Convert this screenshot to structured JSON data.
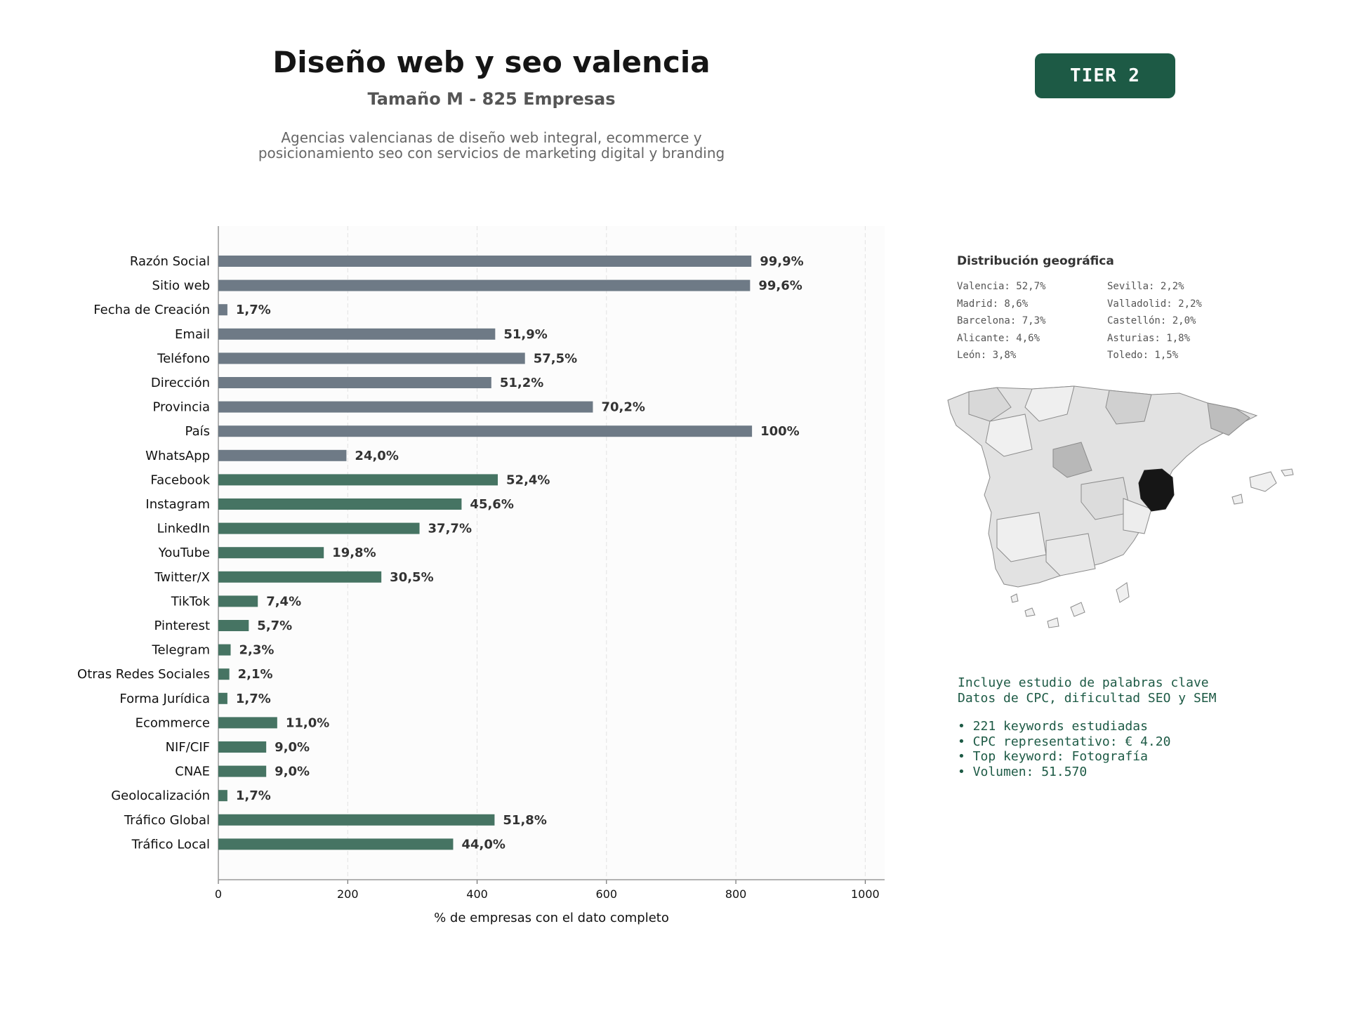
{
  "header": {
    "title": "Diseño web y seo valencia",
    "subtitle": "Tamaño M - 825 Empresas",
    "description_line1": "Agencias valencianas de diseño web integral, ecommerce y",
    "description_line2": "posicionamiento seo con servicios de marketing digital y branding",
    "tier_badge": "TIER 2"
  },
  "colors": {
    "gray_bar": "#6e7a86",
    "green_bar": "#467463",
    "accent": "#1d5a45",
    "highlight_region": "#161616"
  },
  "chart_data": {
    "type": "bar",
    "orientation": "horizontal",
    "xlabel": "% de empresas con el dato completo",
    "ylabel": "",
    "xlim": [
      0,
      1030
    ],
    "xticks": [
      0,
      200,
      400,
      600,
      800,
      1000
    ],
    "grid": "vertical dashed",
    "categories": [
      "Razón Social",
      "Sitio web",
      "Fecha de Creación",
      "Email",
      "Teléfono",
      "Dirección",
      "Provincia",
      "País",
      "WhatsApp",
      "Facebook",
      "Instagram",
      "LinkedIn",
      "YouTube",
      "Twitter/X",
      "TikTok",
      "Pinterest",
      "Telegram",
      "Otras Redes Sociales",
      "Forma Jurídica",
      "Ecommerce",
      "NIF/CIF",
      "CNAE",
      "Geolocalización",
      "Tráfico Global",
      "Tráfico Local"
    ],
    "values": [
      824,
      822,
      14,
      428,
      474,
      422,
      579,
      825,
      198,
      432,
      376,
      311,
      163,
      252,
      61,
      47,
      19,
      17,
      14,
      91,
      74,
      74,
      14,
      427,
      363
    ],
    "labels": [
      "99,9%",
      "99,6%",
      "1,7%",
      "51,9%",
      "57,5%",
      "51,2%",
      "70,2%",
      "100%",
      "24,0%",
      "52,4%",
      "45,6%",
      "37,7%",
      "19,8%",
      "30,5%",
      "7,4%",
      "5,7%",
      "2,3%",
      "2,1%",
      "1,7%",
      "11,0%",
      "9,0%",
      "9,0%",
      "1,7%",
      "51,8%",
      "44,0%"
    ],
    "bar_color_groups": [
      "gray",
      "gray",
      "gray",
      "gray",
      "gray",
      "gray",
      "gray",
      "gray",
      "gray",
      "green",
      "green",
      "green",
      "green",
      "green",
      "green",
      "green",
      "green",
      "green",
      "green",
      "green",
      "green",
      "green",
      "green",
      "green",
      "green"
    ]
  },
  "geo": {
    "title": "Distribución geográfica",
    "items": [
      "Valencia: 52,7%",
      "Sevilla: 2,2%",
      "Madrid: 8,6%",
      "Valladolid: 2,2%",
      "Barcelona: 7,3%",
      "Castellón: 2,0%",
      "Alicante: 4,6%",
      "Asturias: 1,8%",
      "León: 3,8%",
      "Toledo: 1,5%"
    ],
    "map_icon": "spain-provinces-map",
    "highlighted_region": "Valencia"
  },
  "keywords": {
    "line1": "Incluye estudio de palabras clave",
    "line2": "Datos de CPC, dificultad SEO y SEM",
    "bullet1": "• 221 keywords estudiadas",
    "bullet2": "• CPC representativo: € 4.20",
    "bullet3": "• Top keyword: Fotografía",
    "bullet4": "• Volumen: 51.570"
  }
}
